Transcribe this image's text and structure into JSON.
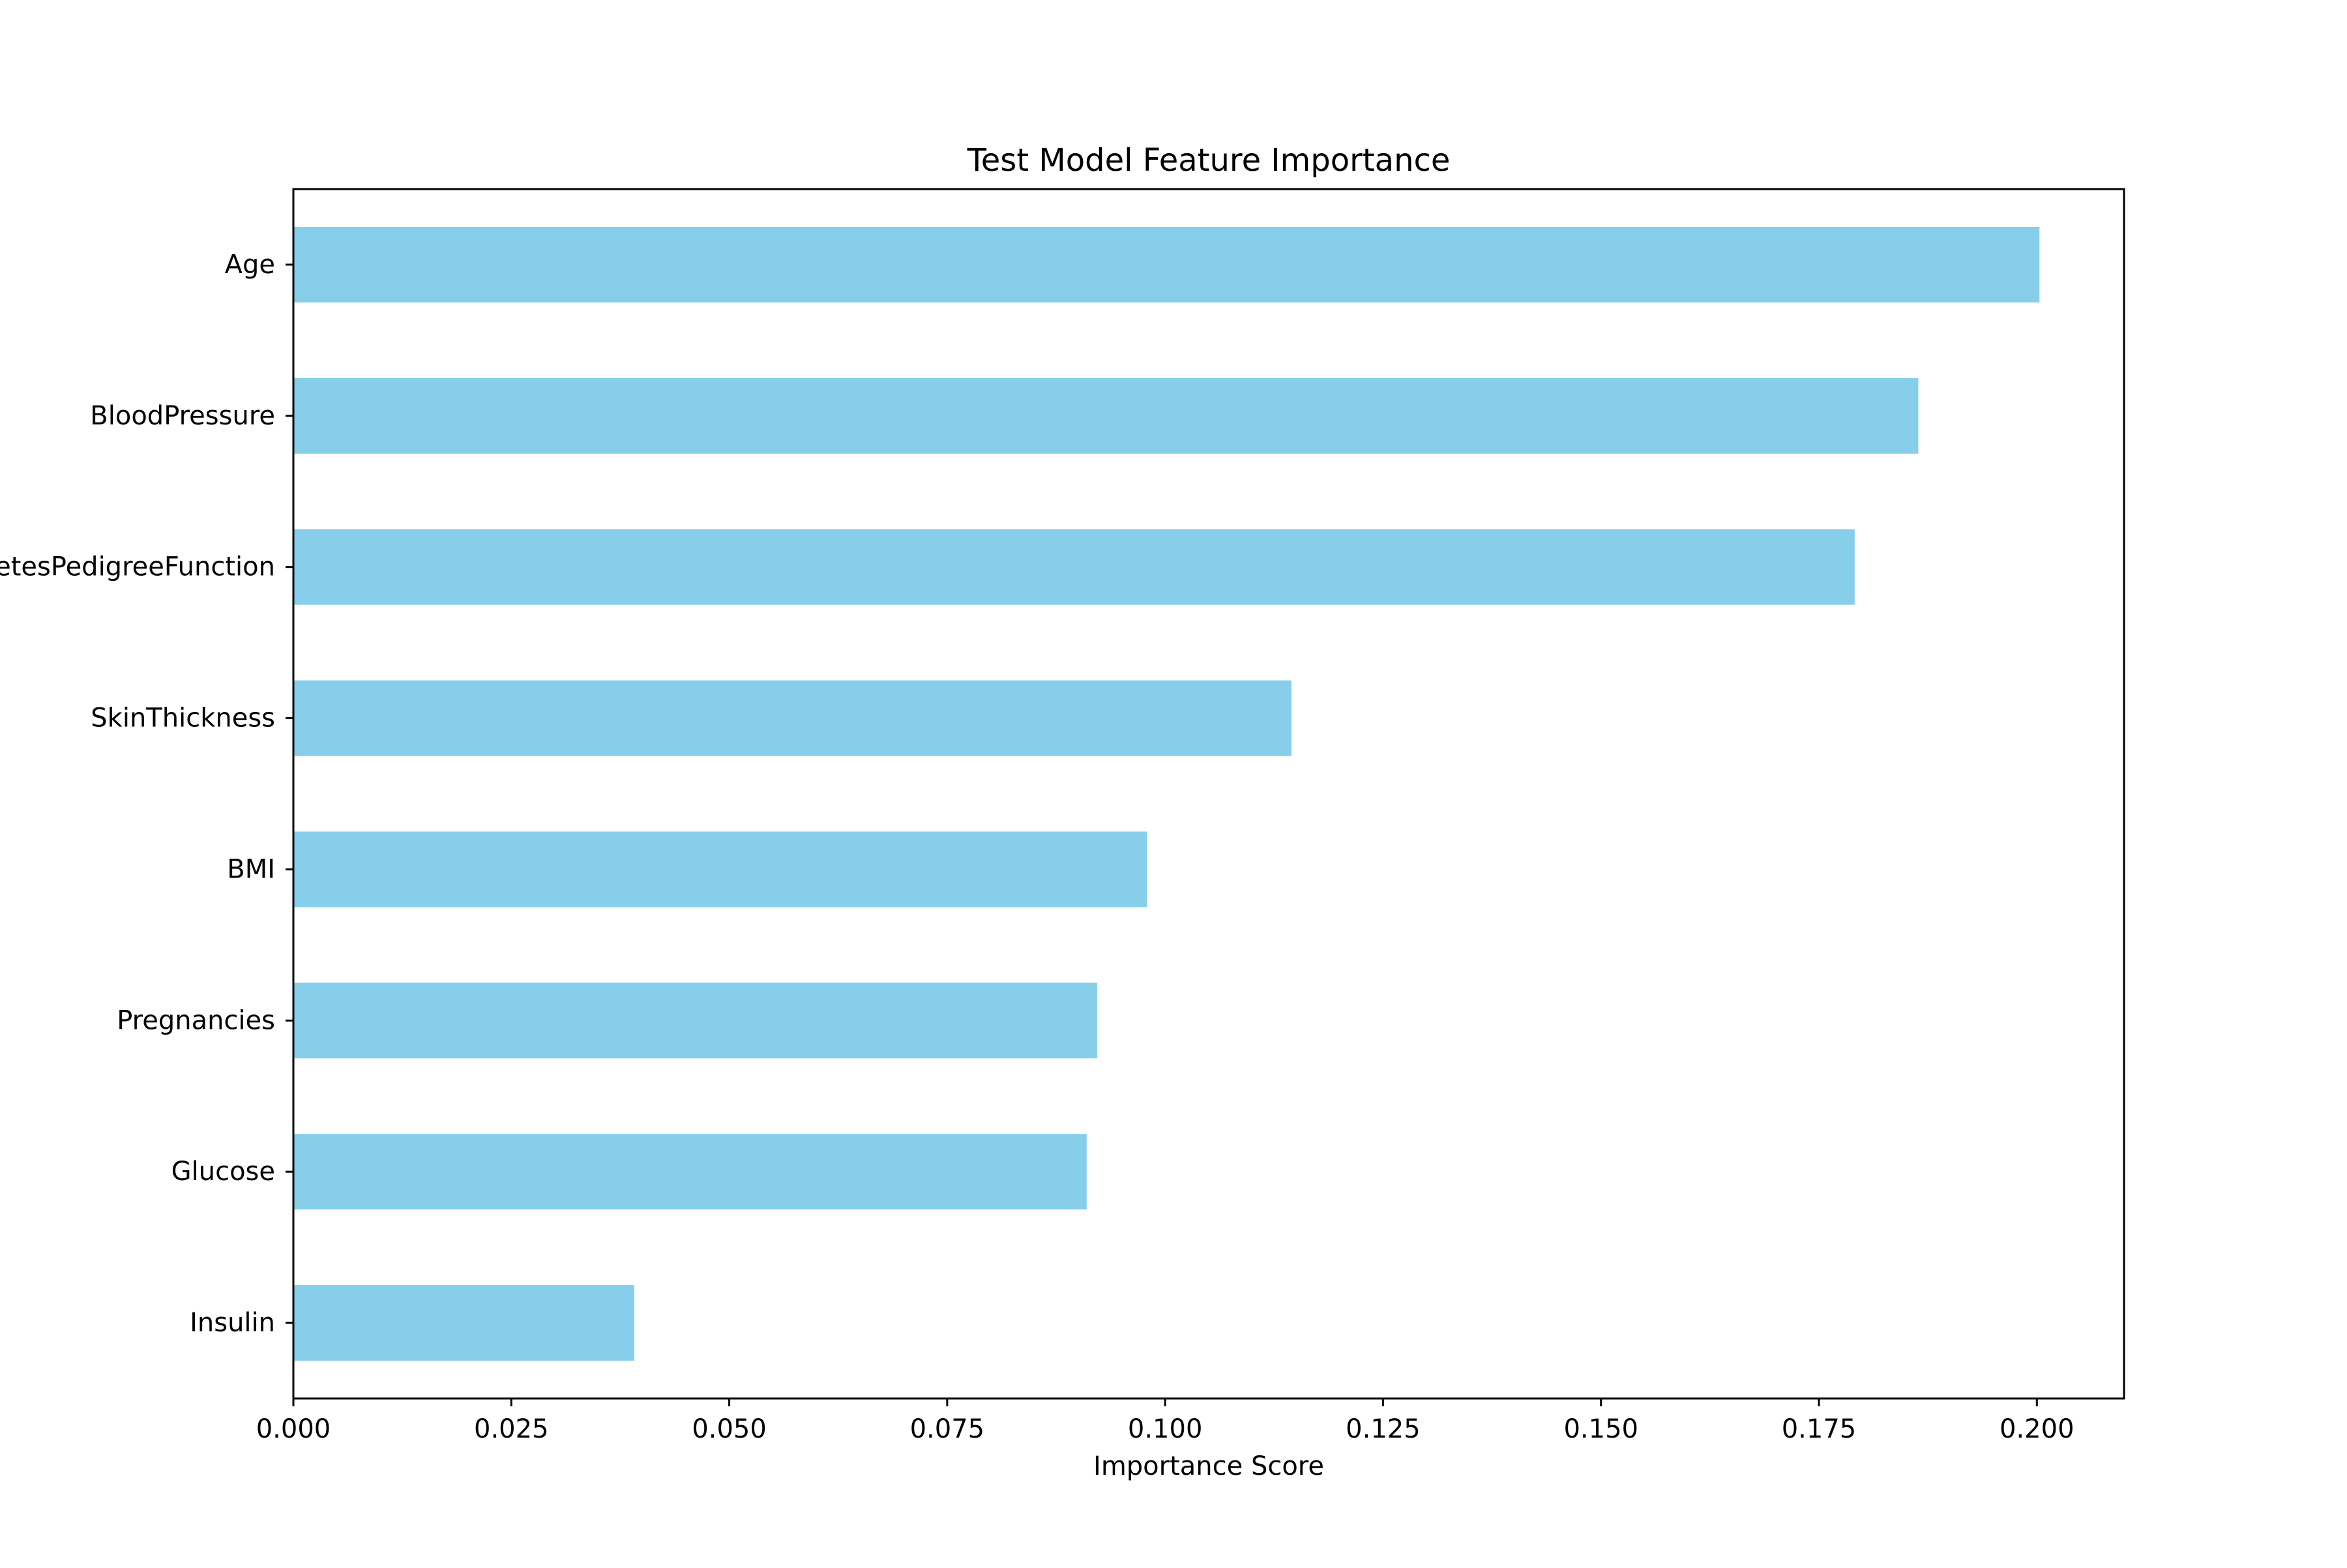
{
  "chart_data": {
    "type": "bar",
    "orientation": "horizontal",
    "title": "Test Model Feature Importance",
    "xlabel": "Importance Score",
    "ylabel": "",
    "xlim": [
      0,
      0.21
    ],
    "grid": false,
    "bar_color": "#87CEEB",
    "categories": [
      "Age",
      "BloodPressure",
      "DiabetesPedigreeFunction",
      "SkinThickness",
      "BMI",
      "Pregnancies",
      "Glucose",
      "Insulin"
    ],
    "values": [
      0.2003,
      0.1864,
      0.1791,
      0.1145,
      0.0979,
      0.0922,
      0.091,
      0.0391
    ],
    "x_ticks": [
      "0.000",
      "0.025",
      "0.050",
      "0.075",
      "0.100",
      "0.125",
      "0.150",
      "0.175",
      "0.200"
    ],
    "x_tick_values": [
      0,
      0.025,
      0.05,
      0.075,
      0.1,
      0.125,
      0.15,
      0.175,
      0.2
    ]
  }
}
